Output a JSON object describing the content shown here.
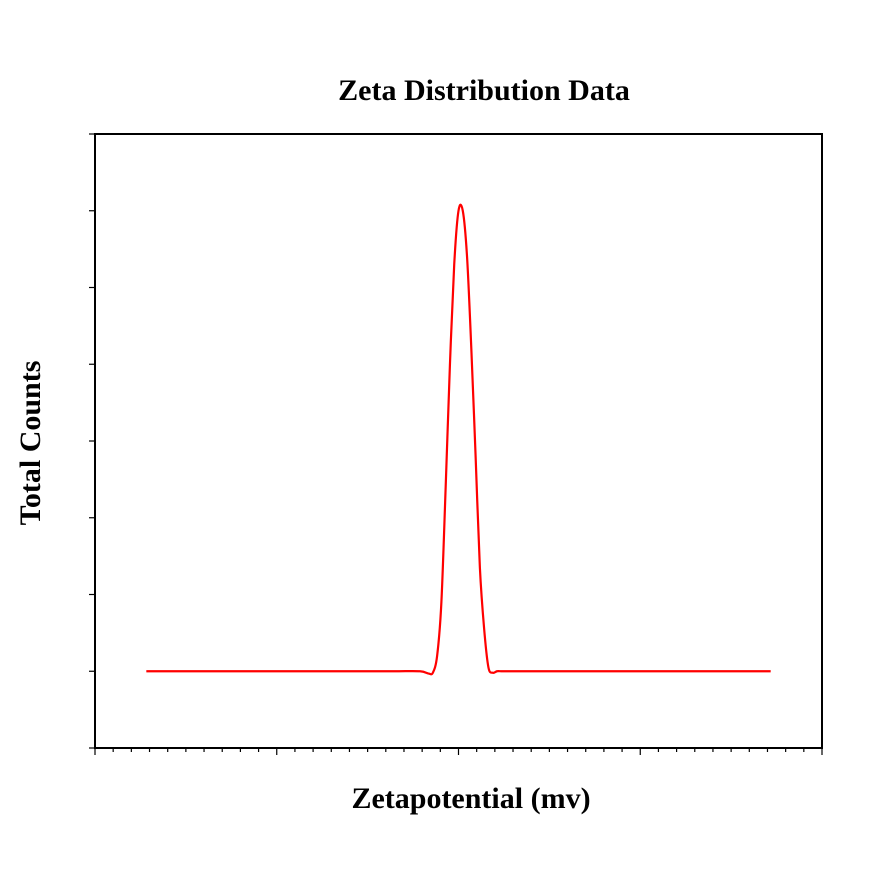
{
  "chart_data": {
    "type": "line",
    "title": "Zeta Distribution Data",
    "xlabel": "Zetapotential (mv)",
    "ylabel": "Total Counts",
    "xlim": [
      -40,
      45
    ],
    "ylim": [
      -1,
      7
    ],
    "x_ticks": {
      "major_count": 5,
      "minor_per_major": 10,
      "labels_shown": false
    },
    "y_ticks": {
      "count": 9,
      "labels_shown": false
    },
    "grid": false,
    "legend": "none",
    "series": [
      {
        "color": "#ff0000",
        "x": [
          -34,
          -30,
          -25,
          -20,
          -15,
          -10,
          -5,
          -2,
          -1,
          -0.5,
          0,
          0.5,
          1,
          1.5,
          2,
          2.5,
          3,
          3.5,
          4,
          4.5,
          5,
          5.5,
          6,
          6.5,
          7,
          7.5,
          8,
          9,
          10,
          15,
          20,
          25,
          30,
          35,
          39
        ],
        "y": [
          0,
          0,
          0,
          0,
          0,
          0,
          0,
          0,
          -0.03,
          -0.02,
          0.2,
          0.9,
          2.4,
          4.0,
          5.3,
          6.0,
          6.0,
          5.4,
          4.2,
          2.8,
          1.35,
          0.55,
          0.05,
          -0.02,
          0,
          0,
          0,
          0,
          0,
          0,
          0,
          0,
          0,
          0,
          0
        ]
      }
    ]
  }
}
